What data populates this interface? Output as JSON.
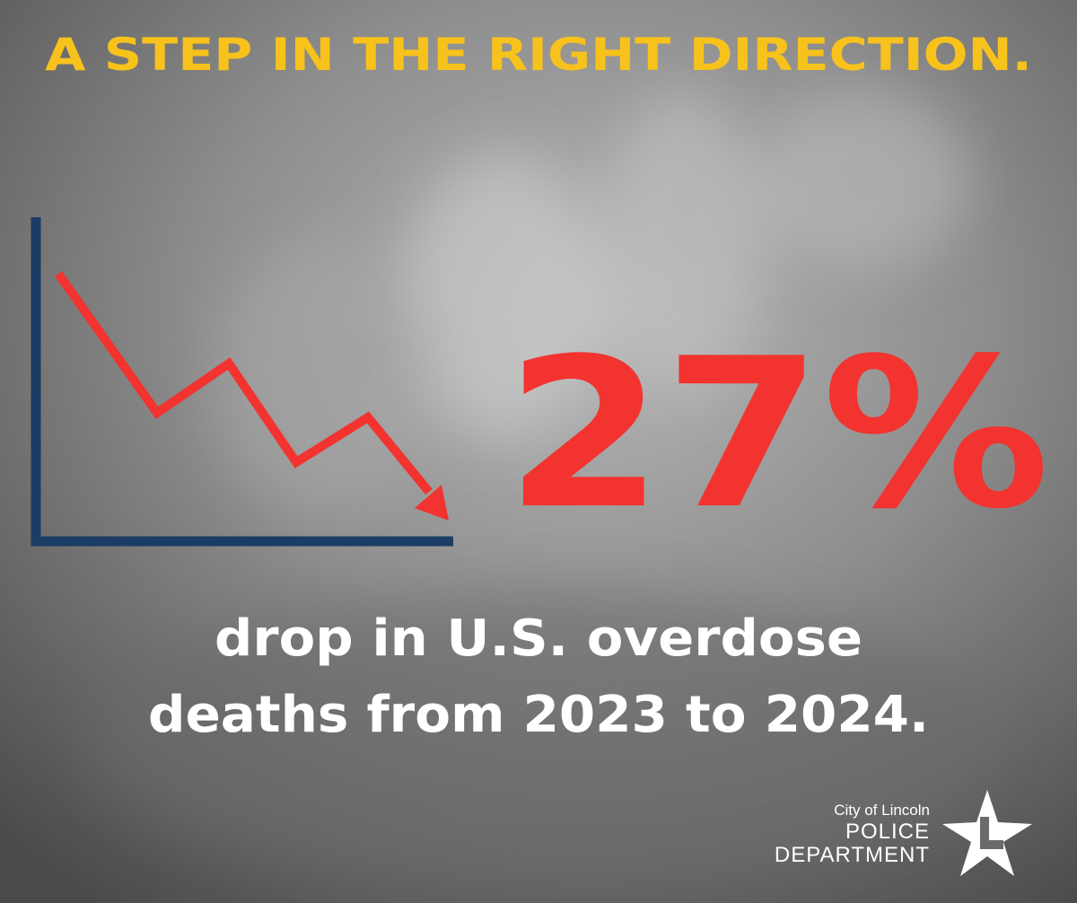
{
  "header": {
    "title": "A STEP IN THE RIGHT DIRECTION."
  },
  "statistic": {
    "figure": "27%",
    "caption_lines": [
      "drop in U.S. overdose",
      "deaths from 2023 to 2024."
    ]
  },
  "logo": {
    "line1": "City of Lincoln",
    "line2": "POLICE",
    "line3": "DEPARTMENT"
  }
}
